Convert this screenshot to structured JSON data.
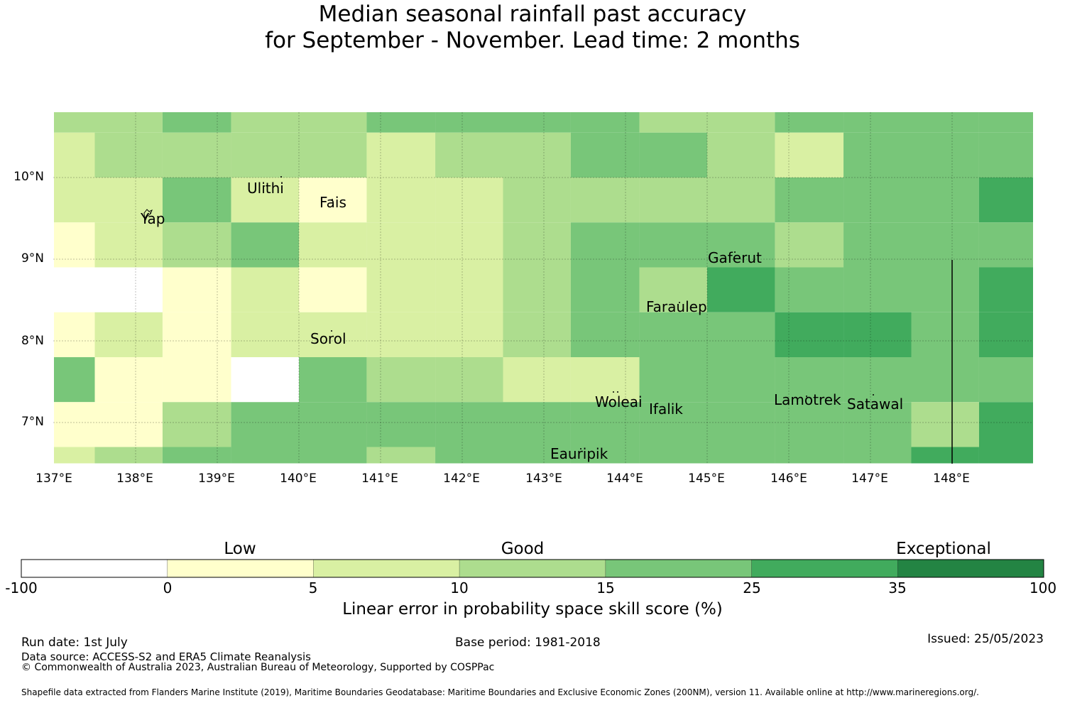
{
  "title_line1": "Median seasonal rainfall past accuracy",
  "title_line2": "for September - November. Lead time: 2 months",
  "map": {
    "lon_labels": [
      "137°E",
      "138°E",
      "139°E",
      "140°E",
      "141°E",
      "142°E",
      "143°E",
      "144°E",
      "145°E",
      "146°E",
      "147°E",
      "148°E"
    ],
    "lat_labels": [
      "10°N",
      "9°N",
      "8°N",
      "7°N"
    ],
    "places": {
      "yap": "Yap",
      "ulithi": "Ulithi",
      "fais": "Fais",
      "gaferut": "Gaferut",
      "faraulep": "Faraulep",
      "sorol": "Sorol",
      "woleai": "Woleai",
      "ifalik": "Ifalik",
      "lamotrek": "Lamotrek",
      "satawal": "Satawal",
      "eauripik": "Eauripik"
    },
    "grid_columns": [
      137,
      137.5,
      138.33,
      139.17,
      140,
      140.83,
      141.67,
      142.5,
      143.33,
      144.17,
      145,
      145.83,
      146.67,
      147.5,
      148.33,
      149
    ],
    "grid_rows_lat": [
      10.8,
      10.55,
      10,
      9.45,
      8.9,
      8.35,
      7.8,
      7.25,
      6.7,
      6.5
    ],
    "cell_classes": [
      [
        3,
        3,
        4,
        3,
        3,
        4,
        4,
        4,
        4,
        3,
        3,
        4,
        4,
        4,
        4
      ],
      [
        2,
        3,
        3,
        3,
        3,
        2,
        3,
        3,
        4,
        4,
        3,
        2,
        4,
        4,
        4
      ],
      [
        2,
        2,
        4,
        2,
        1,
        2,
        2,
        3,
        3,
        3,
        3,
        4,
        4,
        4,
        5
      ],
      [
        1,
        2,
        3,
        4,
        2,
        2,
        2,
        3,
        4,
        4,
        4,
        3,
        4,
        4,
        4
      ],
      [
        0,
        0,
        1,
        2,
        1,
        2,
        2,
        3,
        4,
        3,
        5,
        4,
        4,
        4,
        5
      ],
      [
        1,
        2,
        1,
        2,
        2,
        2,
        2,
        3,
        4,
        4,
        4,
        5,
        5,
        4,
        5
      ],
      [
        4,
        1,
        1,
        0,
        4,
        3,
        3,
        2,
        2,
        4,
        4,
        4,
        4,
        4,
        4
      ],
      [
        1,
        1,
        3,
        4,
        4,
        4,
        4,
        4,
        4,
        4,
        4,
        4,
        4,
        3,
        5
      ],
      [
        2,
        3,
        4,
        4,
        4,
        3,
        4,
        4,
        4,
        4,
        4,
        4,
        4,
        5,
        5
      ]
    ],
    "boundary_line_lon": 148
  },
  "colorbar": {
    "categories": [
      "Low",
      "Good",
      "Exceptional"
    ],
    "ticks": [
      "-100",
      "0",
      "5",
      "10",
      "15",
      "25",
      "35",
      "100"
    ],
    "colors": [
      "#ffffff",
      "#ffffcc",
      "#d9f0a3",
      "#addd8e",
      "#78c679",
      "#41ab5d",
      "#238443"
    ],
    "label": "Linear error in probability space skill score (%)"
  },
  "footer": {
    "run_date": "Run date: 1st July",
    "base_period": "Base period: 1981-2018",
    "issued": "Issued: 25/05/2023",
    "data_source": "Data source: ACCESS-S2 and ERA5 Climate Reanalysis",
    "copyright": "© Commonwealth of Australia 2023, Australian Bureau of Meteorology, Supported by COSPPac",
    "shapefile": "Shapefile data extracted from Flanders Marine Institute (2019), Maritime Boundaries Geodatabase: Maritime Boundaries and Exclusive Economic Zones (200NM), version 11. Available online at http://www.marineregions.org/."
  }
}
